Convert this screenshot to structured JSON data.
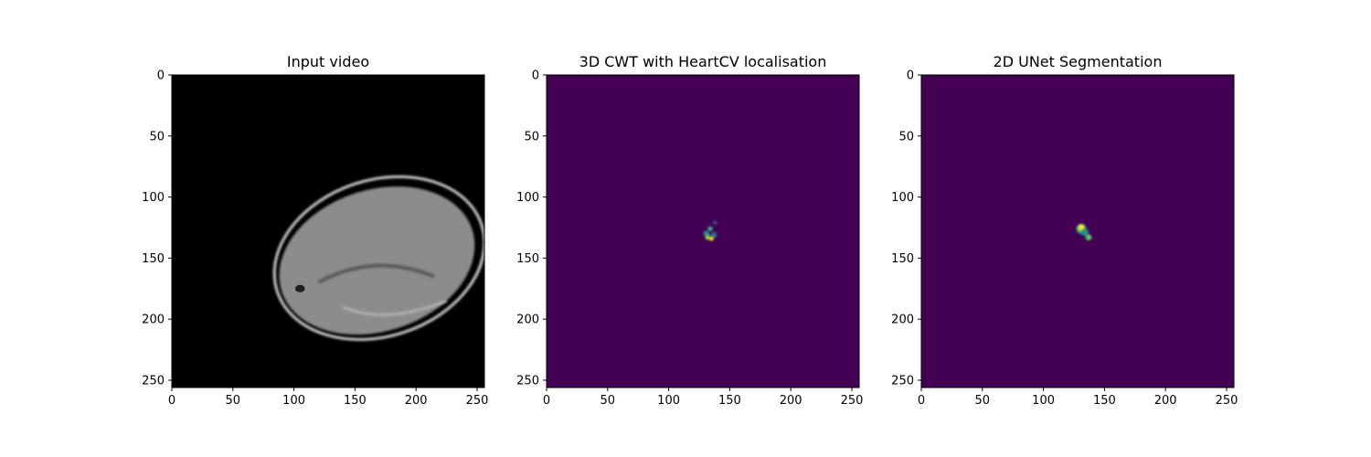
{
  "chart_data": [
    {
      "type": "heatmap",
      "title": "Input video",
      "colormap": "gray",
      "background": "#000000",
      "xlim": [
        0,
        256
      ],
      "ylim": [
        256,
        0
      ],
      "xticks": [
        "0",
        "50",
        "100",
        "150",
        "200",
        "250"
      ],
      "yticks": [
        "0",
        "50",
        "100",
        "150",
        "200",
        "250"
      ],
      "features": [
        {
          "name": "outer-ring",
          "shape": "ellipse",
          "cx": 170,
          "cy": 150,
          "rx": 88,
          "ry": 64,
          "color": "#cfcfcf"
        },
        {
          "name": "body",
          "shape": "ellipse",
          "cx": 168,
          "cy": 152,
          "rx": 82,
          "ry": 58,
          "color": "#8c8c8c"
        },
        {
          "name": "shadow",
          "shape": "ellipse",
          "cx": 105,
          "cy": 175,
          "rx": 4,
          "ry": 3,
          "color": "#1e1e1e"
        }
      ]
    },
    {
      "type": "heatmap",
      "title": "3D CWT with HeartCV localisation",
      "colormap": "viridis",
      "background": "#440154",
      "xlim": [
        0,
        256
      ],
      "ylim": [
        256,
        0
      ],
      "xticks": [
        "0",
        "50",
        "100",
        "150",
        "200",
        "250"
      ],
      "yticks": [
        "0",
        "50",
        "100",
        "150",
        "200",
        "250"
      ],
      "hotspots": [
        {
          "x": 131,
          "y": 130,
          "r": 2.5,
          "color": "#21918c"
        },
        {
          "x": 134,
          "y": 126,
          "r": 2,
          "color": "#35b779"
        },
        {
          "x": 137,
          "y": 131,
          "r": 2.5,
          "color": "#2c728e"
        },
        {
          "x": 132,
          "y": 133,
          "r": 2,
          "color": "#90d743"
        },
        {
          "x": 135,
          "y": 134,
          "r": 1.8,
          "color": "#fde725"
        },
        {
          "x": 138,
          "y": 121,
          "r": 1.5,
          "color": "#3b528b"
        }
      ]
    },
    {
      "type": "heatmap",
      "title": "2D UNet Segmentation",
      "colormap": "viridis",
      "background": "#440154",
      "xlim": [
        0,
        256
      ],
      "ylim": [
        256,
        0
      ],
      "xticks": [
        "0",
        "50",
        "100",
        "150",
        "200",
        "250"
      ],
      "yticks": [
        "0",
        "50",
        "100",
        "150",
        "200",
        "250"
      ],
      "hotspots": [
        {
          "x": 131,
          "y": 126,
          "r": 4,
          "color": "#35b779"
        },
        {
          "x": 131,
          "y": 125,
          "r": 2.5,
          "color": "#fde725"
        },
        {
          "x": 134,
          "y": 129,
          "r": 3,
          "color": "#21918c"
        },
        {
          "x": 137,
          "y": 133,
          "r": 2.5,
          "color": "#5ec962"
        }
      ]
    }
  ]
}
